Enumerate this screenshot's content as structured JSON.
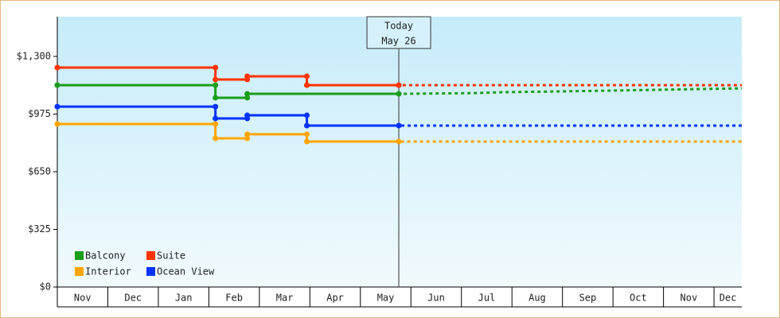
{
  "chart_data": {
    "type": "line",
    "categories": [
      "Nov",
      "Dec",
      "Jan",
      "Feb",
      "Mar",
      "Apr",
      "May",
      "Jun",
      "Jul",
      "Aug",
      "Sep",
      "Oct",
      "Nov",
      "Dec"
    ],
    "xlim": [
      0,
      13.55
    ],
    "ylim": [
      0,
      1524
    ],
    "yticks": [
      {
        "value": 0,
        "label": "$0"
      },
      {
        "value": 325,
        "label": "$325"
      },
      {
        "value": 650,
        "label": "$650"
      },
      {
        "value": 975,
        "label": "$975"
      },
      {
        "value": 1300,
        "label": "$1,300"
      }
    ],
    "annotation": {
      "x": 6.76,
      "lines": [
        "Today",
        "May 26"
      ]
    },
    "legend": "lower left",
    "series": [
      {
        "name": "Balcony",
        "color": "#1a9e1a",
        "x": [
          0,
          3.13,
          3.13,
          3.76,
          3.76,
          6.76,
          8.2,
          8.8,
          10.7,
          13.55
        ],
        "values": [
          1138,
          1138,
          1067,
          1067,
          1089,
          1089,
          1093,
          1098,
          1106,
          1120
        ]
      },
      {
        "name": "Suite",
        "color": "#ff3300",
        "x": [
          0,
          3.13,
          3.13,
          3.76,
          3.76,
          4.94,
          4.94,
          6.76,
          13.55
        ],
        "values": [
          1237,
          1237,
          1170,
          1170,
          1188,
          1188,
          1138,
          1138,
          1138
        ]
      },
      {
        "name": "Interior",
        "color": "#ffa500",
        "x": [
          0,
          3.13,
          3.13,
          3.76,
          3.76,
          4.94,
          4.94,
          6.76,
          13.55
        ],
        "values": [
          919,
          919,
          838,
          838,
          861,
          861,
          820,
          820,
          820
        ]
      },
      {
        "name": "Ocean View",
        "color": "#0033ff",
        "x": [
          0,
          3.13,
          3.13,
          3.76,
          3.76,
          4.94,
          4.94,
          6.76,
          13.55
        ],
        "values": [
          1017,
          1017,
          950,
          950,
          968,
          968,
          910,
          910,
          910
        ]
      }
    ]
  }
}
